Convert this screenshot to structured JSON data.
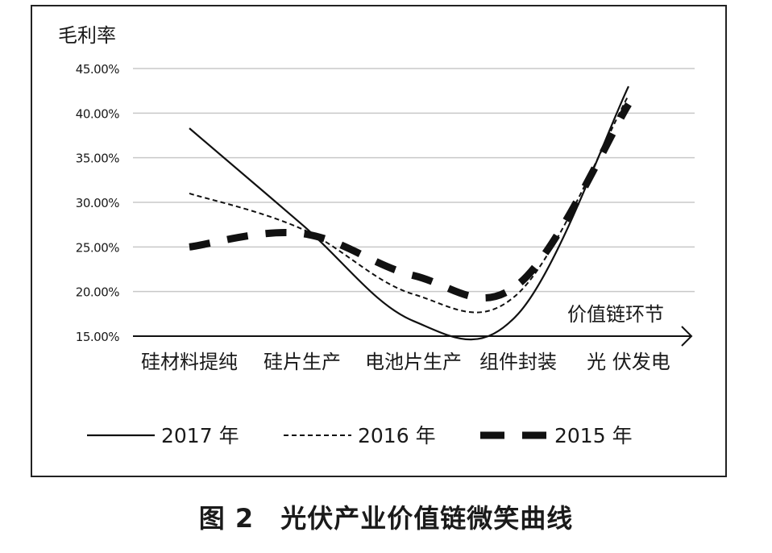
{
  "chart_data": {
    "type": "line",
    "ylabel": "毛利率",
    "xlabel": "价值链环节",
    "categories": [
      "硅材料提纯",
      "硅片生产",
      "电池片生产",
      "组件封装",
      "光 伏发电"
    ],
    "y_ticks": [
      "45.00%",
      "40.00%",
      "35.00%",
      "30.00%",
      "25.00%",
      "20.00%",
      "15.00%"
    ],
    "ylim": [
      15,
      45
    ],
    "grid": true,
    "legend_position": "bottom",
    "series": [
      {
        "name": "2017 年",
        "values": [
          38.3,
          27.5,
          16.7,
          17.5,
          43.0
        ],
        "style": "solid"
      },
      {
        "name": "2016 年",
        "values": [
          31.0,
          27.0,
          19.7,
          19.8,
          42.0
        ],
        "style": "dashed-thin"
      },
      {
        "name": "2015 年",
        "values": [
          25.0,
          26.5,
          21.8,
          20.8,
          41.0
        ],
        "style": "dashed-thick"
      }
    ],
    "line_color": "#111111",
    "grid_color": "#c8c8c8"
  },
  "caption": "图 2　光伏产业价值链微笑曲线"
}
